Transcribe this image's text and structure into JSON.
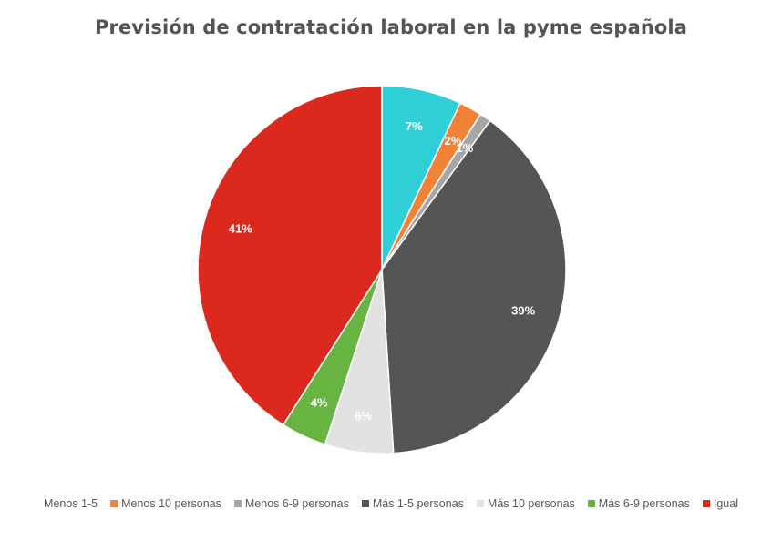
{
  "chart_data": {
    "type": "pie",
    "title": "Previsión de contratación laboral en la pyme española",
    "categories": [
      "Menos 1-5",
      "Menos 10 personas",
      "Menos 6-9 personas",
      "Más 1-5 personas",
      "Más 10 personas",
      "Más 6-9 personas",
      "Igual"
    ],
    "values": [
      7,
      2,
      1,
      39,
      6,
      4,
      41
    ],
    "data_labels": [
      "7%",
      "2%",
      "1%",
      "39%",
      "6%",
      "4%",
      "41%"
    ],
    "colors": [
      "#2ecfd7",
      "#f28237",
      "#a6a6a6",
      "#555555",
      "#e2e2e2",
      "#68b443",
      "#dc291e"
    ],
    "label_colors": [
      "#ffffff",
      "#ffffff",
      "#ffffff",
      "#ffffff",
      "#ffffff",
      "#ffffff",
      "#ffffff"
    ],
    "legend_position": "bottom"
  }
}
